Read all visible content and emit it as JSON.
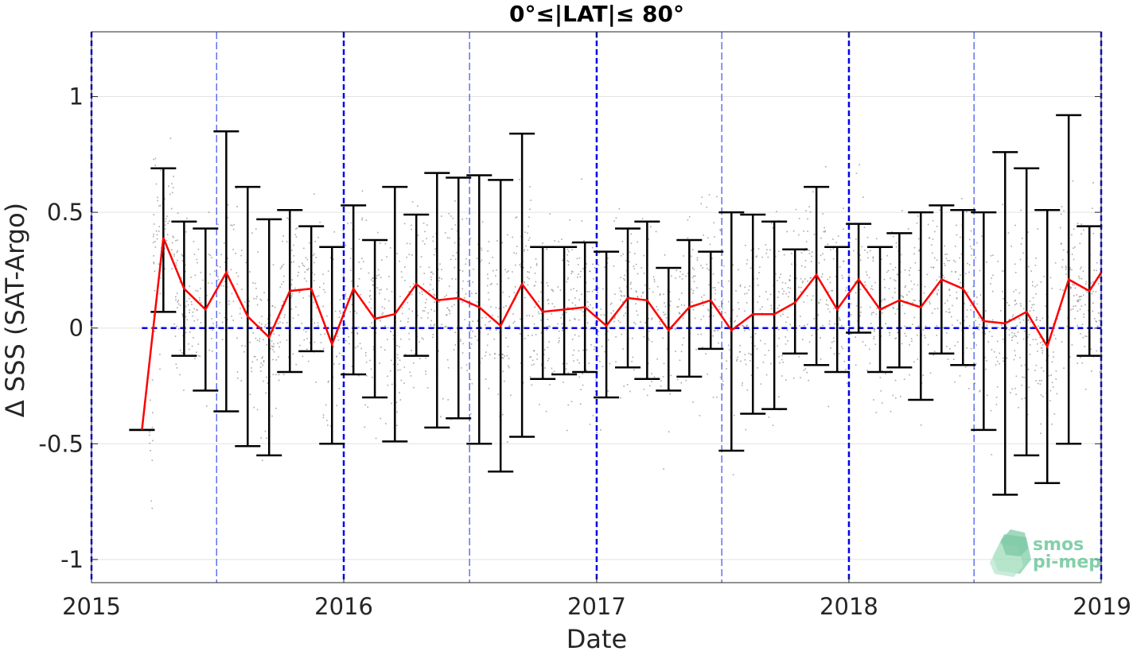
{
  "chart_data": {
    "type": "line",
    "title": "0°≤|LAT|≤ 80°",
    "xlabel": "Date",
    "ylabel": "Δ SSS (SAT-Argo)",
    "xlim": [
      "2015-01-01",
      "2019-01-01"
    ],
    "ylim": [
      -1.1,
      1.28
    ],
    "x_ticks": [
      "2015",
      "2016",
      "2017",
      "2018",
      "2019"
    ],
    "y_ticks": [
      -1,
      -0.5,
      0,
      0.5,
      1
    ],
    "y_tick_labels": [
      "-1",
      "-0.5",
      "0",
      "0.5",
      "1"
    ],
    "grid": true,
    "zero_line": {
      "value": 0,
      "color": "#0000ee",
      "style": "dashed"
    },
    "year_lines": {
      "dates": [
        "2015-01-01",
        "2016-01-01",
        "2017-01-01",
        "2018-01-01",
        "2019-01-01"
      ],
      "color": "#0000ee"
    },
    "half_year_lines": {
      "dates": [
        "2015-07-01",
        "2016-07-01",
        "2017-07-01",
        "2018-07-01"
      ],
      "color": "#3a4fee"
    },
    "series": [
      {
        "color": "#ff0000",
        "x": [
          "2015-03-15",
          "2015-04-15",
          "2015-05-15",
          "2015-06-15",
          "2015-07-15",
          "2015-08-15",
          "2015-09-15",
          "2015-10-15",
          "2015-11-15",
          "2015-12-15",
          "2016-01-15",
          "2016-02-15",
          "2016-03-15",
          "2016-04-15",
          "2016-05-15",
          "2016-06-15",
          "2016-07-15",
          "2016-08-15",
          "2016-09-15",
          "2016-10-15",
          "2016-11-15",
          "2016-12-15",
          "2017-01-15",
          "2017-02-15",
          "2017-03-15",
          "2017-04-15",
          "2017-05-15",
          "2017-06-15",
          "2017-07-15",
          "2017-08-15",
          "2017-09-15",
          "2017-10-15",
          "2017-11-15",
          "2017-12-15",
          "2018-01-15",
          "2018-02-15",
          "2018-03-15",
          "2018-04-15",
          "2018-05-15",
          "2018-06-15",
          "2018-07-15",
          "2018-08-15",
          "2018-09-15",
          "2018-10-15",
          "2018-11-15",
          "2018-12-15",
          "2019-01-01"
        ],
        "values": [
          -0.44,
          0.39,
          0.17,
          0.08,
          0.24,
          0.05,
          -0.04,
          0.16,
          0.17,
          -0.07,
          0.17,
          0.04,
          0.06,
          0.19,
          0.12,
          0.13,
          0.09,
          0.01,
          0.19,
          0.07,
          0.08,
          0.09,
          0.01,
          0.13,
          0.12,
          -0.01,
          0.09,
          0.12,
          -0.01,
          0.06,
          0.06,
          0.11,
          0.23,
          0.08,
          0.21,
          0.08,
          0.12,
          0.09,
          0.21,
          0.17,
          0.03,
          0.02,
          0.07,
          -0.08,
          0.21,
          0.16,
          0.24
        ],
        "err_low": [
          -0.44,
          0.07,
          -0.12,
          -0.27,
          -0.36,
          -0.51,
          -0.55,
          -0.19,
          -0.1,
          -0.5,
          -0.2,
          -0.3,
          -0.49,
          -0.12,
          -0.43,
          -0.39,
          -0.5,
          -0.62,
          -0.47,
          -0.22,
          -0.2,
          -0.19,
          -0.3,
          -0.17,
          -0.22,
          -0.27,
          -0.21,
          -0.09,
          -0.53,
          -0.37,
          -0.35,
          -0.11,
          -0.16,
          -0.19,
          -0.02,
          -0.19,
          -0.17,
          -0.31,
          -0.11,
          -0.16,
          -0.44,
          -0.72,
          -0.55,
          -0.67,
          -0.5,
          -0.12,
          null
        ],
        "err_high": [
          -0.44,
          0.69,
          0.46,
          0.43,
          0.85,
          0.61,
          0.47,
          0.51,
          0.44,
          0.35,
          0.53,
          0.38,
          0.61,
          0.49,
          0.67,
          0.65,
          0.66,
          0.64,
          0.84,
          0.35,
          0.35,
          0.37,
          0.33,
          0.43,
          0.46,
          0.26,
          0.38,
          0.33,
          0.5,
          0.49,
          0.46,
          0.34,
          0.61,
          0.35,
          0.45,
          0.35,
          0.41,
          0.5,
          0.53,
          0.51,
          0.5,
          0.76,
          0.69,
          0.51,
          0.92,
          0.44,
          null
        ]
      }
    ],
    "scatter_color": "#8c8c8c",
    "errorbar_color": "#000000"
  },
  "logo": {
    "line1": "smos",
    "line2": "pi-mep",
    "color": "#5bbf8f"
  }
}
